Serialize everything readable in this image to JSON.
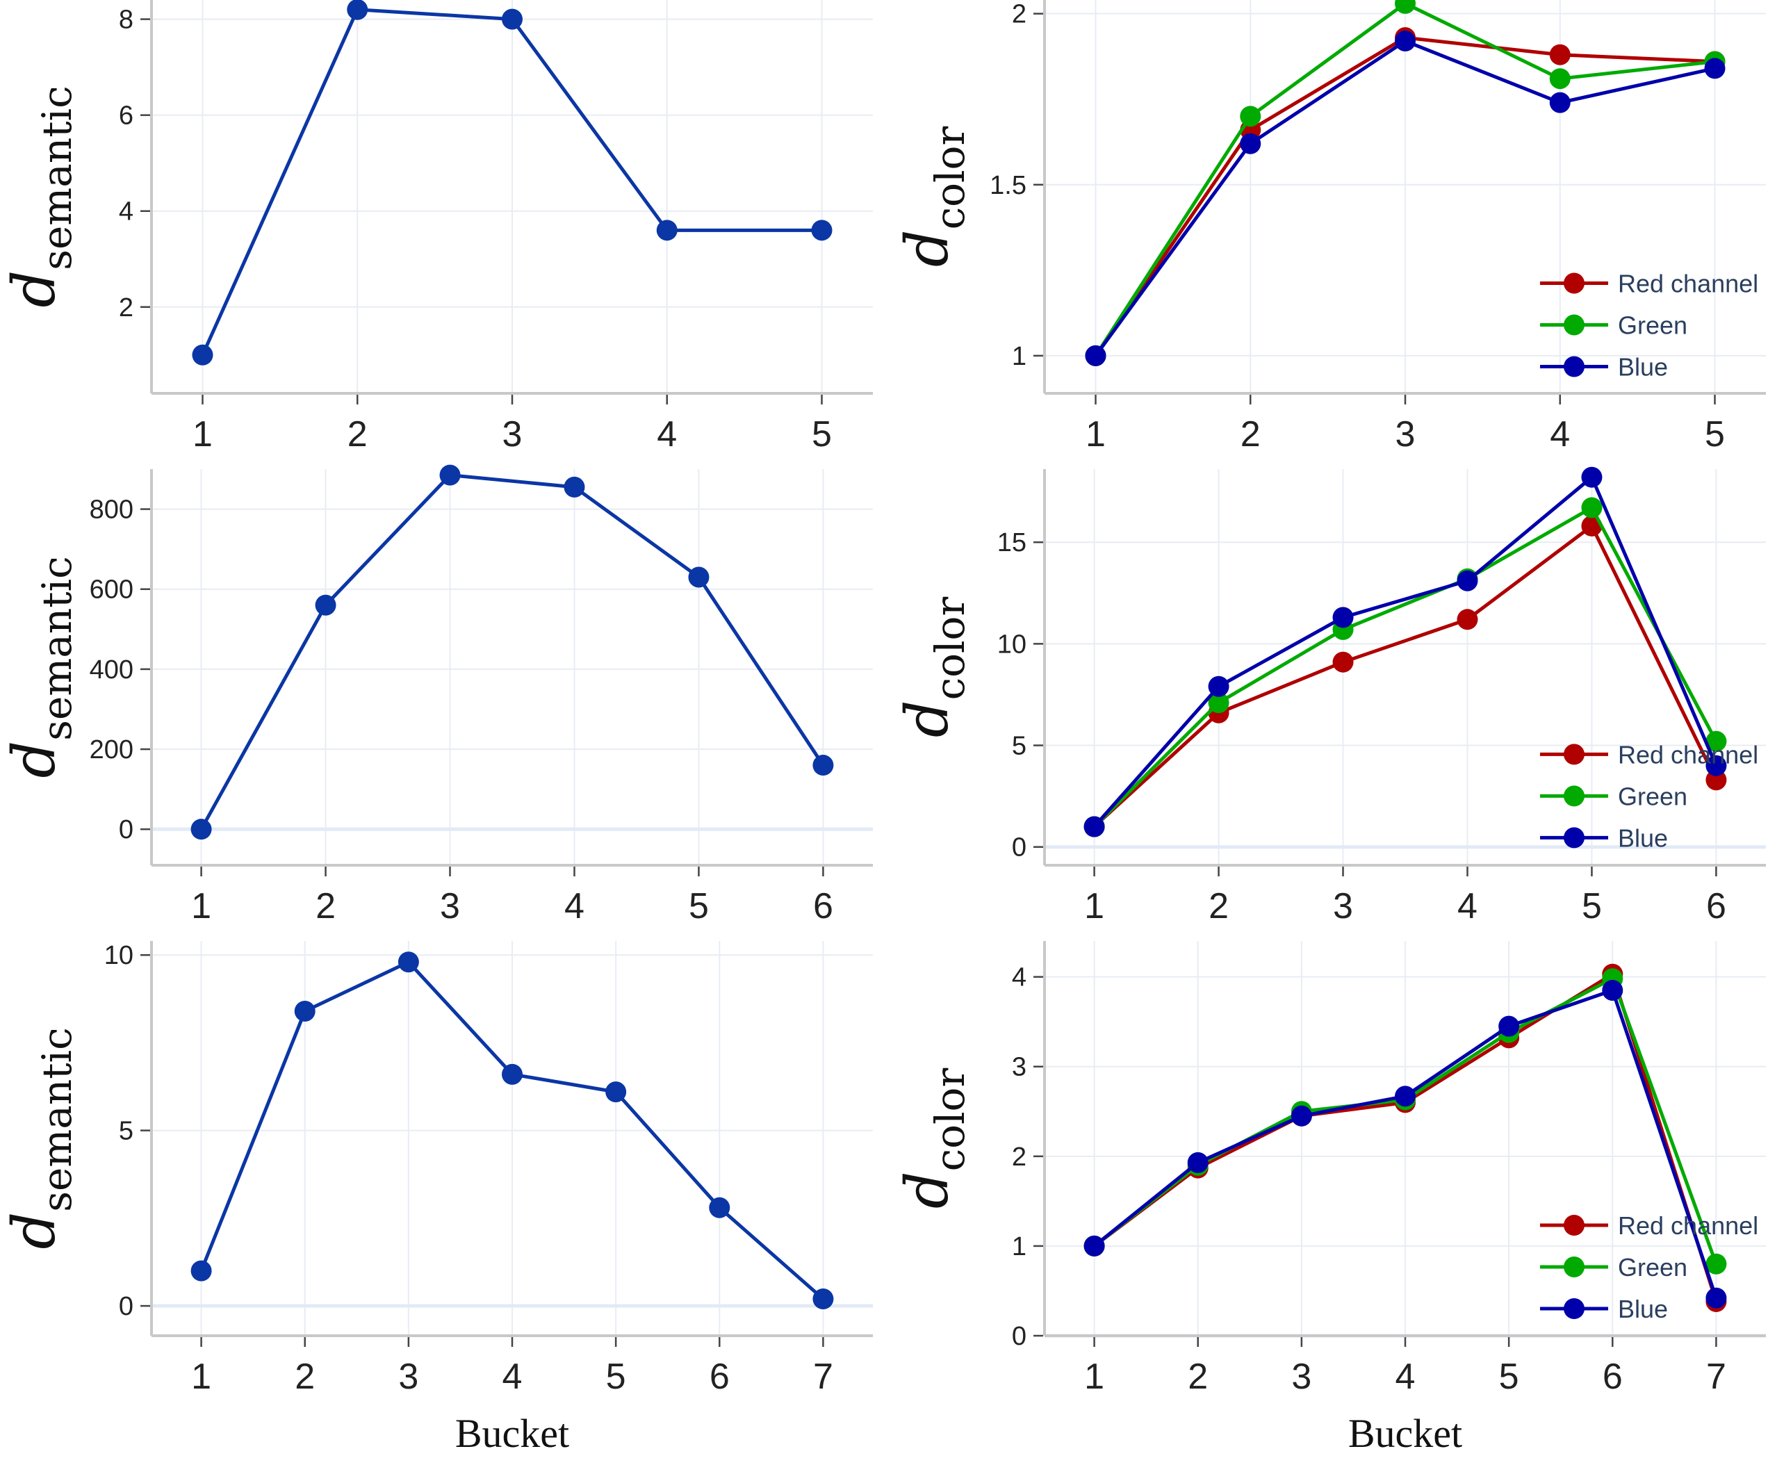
{
  "chart_data": [
    {
      "type": "line",
      "panel": "top-left",
      "ylabel_main": "d",
      "ylabel_sub": "semantic",
      "xlabel": "",
      "x": [
        1,
        2,
        3,
        4,
        5
      ],
      "xlim": [
        0.67,
        5.33
      ],
      "ylim": [
        0.2,
        8.4
      ],
      "yticks": [
        2,
        4,
        6,
        8
      ],
      "ytick_labels": [
        "2",
        "4",
        "6",
        "8"
      ],
      "series": [
        {
          "name": "semantic",
          "color": "#0b36a5",
          "values": [
            1.0,
            8.2,
            8.0,
            3.6,
            3.6
          ]
        }
      ],
      "legend": false
    },
    {
      "type": "line",
      "panel": "top-right",
      "ylabel_main": "d",
      "ylabel_sub": "color",
      "xlabel": "",
      "x": [
        1,
        2,
        3,
        4,
        5
      ],
      "xlim": [
        0.67,
        5.33
      ],
      "ylim": [
        0.89,
        2.04
      ],
      "yticks": [
        1,
        1.5,
        2
      ],
      "ytick_labels": [
        "1",
        "1.5",
        "2"
      ],
      "series": [
        {
          "name": "Red channel",
          "color": "#b00000",
          "values": [
            1.0,
            1.66,
            1.93,
            1.88,
            1.86
          ]
        },
        {
          "name": "Green",
          "color": "#00aa00",
          "values": [
            1.0,
            1.7,
            2.03,
            1.81,
            1.86
          ]
        },
        {
          "name": "Blue",
          "color": "#0000aa",
          "values": [
            1.0,
            1.62,
            1.92,
            1.74,
            1.84
          ]
        }
      ],
      "legend": true
    },
    {
      "type": "line",
      "panel": "middle-left",
      "ylabel_main": "d",
      "ylabel_sub": "semantic",
      "xlabel": "",
      "x": [
        1,
        2,
        3,
        4,
        5,
        6
      ],
      "xlim": [
        0.6,
        6.4
      ],
      "ylim": [
        -90,
        900
      ],
      "yticks": [
        0,
        200,
        400,
        600,
        800
      ],
      "ytick_labels": [
        "0",
        "200",
        "400",
        "600",
        "800"
      ],
      "series": [
        {
          "name": "semantic",
          "color": "#0b36a5",
          "values": [
            0,
            560,
            885,
            855,
            630,
            160
          ]
        }
      ],
      "legend": false
    },
    {
      "type": "line",
      "panel": "middle-right",
      "ylabel_main": "d",
      "ylabel_sub": "color",
      "xlabel": "",
      "x": [
        1,
        2,
        3,
        4,
        5,
        6
      ],
      "xlim": [
        0.6,
        6.4
      ],
      "ylim": [
        -0.9,
        18.6
      ],
      "yticks": [
        0,
        5,
        10,
        15
      ],
      "ytick_labels": [
        "0",
        "5",
        "10",
        "15"
      ],
      "series": [
        {
          "name": "Red channel",
          "color": "#b00000",
          "values": [
            1.0,
            6.6,
            9.1,
            11.2,
            15.8,
            3.3
          ]
        },
        {
          "name": "Green",
          "color": "#00aa00",
          "values": [
            1.0,
            7.1,
            10.7,
            13.2,
            16.7,
            5.2
          ]
        },
        {
          "name": "Blue",
          "color": "#0000aa",
          "values": [
            1.0,
            7.9,
            11.3,
            13.1,
            18.2,
            4.0
          ]
        }
      ],
      "legend": true
    },
    {
      "type": "line",
      "panel": "bottom-left",
      "ylabel_main": "d",
      "ylabel_sub": "semantic",
      "xlabel": "Bucket",
      "x": [
        1,
        2,
        3,
        4,
        5,
        6,
        7
      ],
      "xlim": [
        0.52,
        7.48
      ],
      "ylim": [
        -0.85,
        10.4
      ],
      "yticks": [
        0,
        5,
        10
      ],
      "ytick_labels": [
        "0",
        "5",
        "10"
      ],
      "series": [
        {
          "name": "semantic",
          "color": "#0b36a5",
          "values": [
            1.0,
            8.4,
            9.8,
            6.6,
            6.1,
            2.8,
            0.2
          ]
        }
      ],
      "legend": false
    },
    {
      "type": "line",
      "panel": "bottom-right",
      "ylabel_main": "d",
      "ylabel_sub": "color",
      "xlabel": "Bucket",
      "x": [
        1,
        2,
        3,
        4,
        5,
        6,
        7
      ],
      "xlim": [
        0.52,
        7.48
      ],
      "ylim": [
        0.0,
        4.4
      ],
      "yticks": [
        0,
        1,
        2,
        3,
        4
      ],
      "ytick_labels": [
        "0",
        "1",
        "2",
        "3",
        "4"
      ],
      "series": [
        {
          "name": "Red channel",
          "color": "#b00000",
          "values": [
            1.0,
            1.87,
            2.45,
            2.6,
            3.32,
            4.03,
            0.38
          ]
        },
        {
          "name": "Green",
          "color": "#00aa00",
          "values": [
            1.0,
            1.9,
            2.5,
            2.63,
            3.38,
            3.98,
            0.8
          ]
        },
        {
          "name": "Blue",
          "color": "#0000aa",
          "values": [
            1.0,
            1.93,
            2.45,
            2.67,
            3.45,
            3.85,
            0.42
          ]
        }
      ],
      "legend": true
    }
  ]
}
